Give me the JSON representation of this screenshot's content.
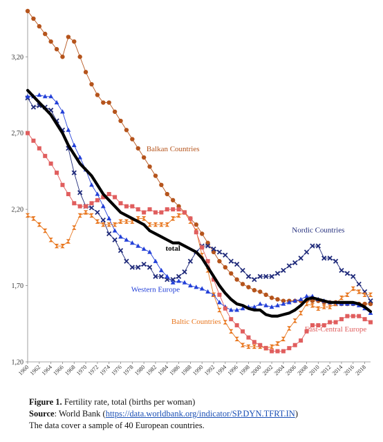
{
  "chart_data": {
    "type": "line",
    "title": "",
    "xlabel": "",
    "ylabel": "",
    "ylim": [
      1.2,
      3.5
    ],
    "yticks": [
      1.2,
      1.7,
      2.2,
      2.7,
      3.2
    ],
    "ytick_labels": [
      "1,20",
      "1,70",
      "2,20",
      "2,70",
      "3,20"
    ],
    "x_range": [
      1960,
      2019
    ],
    "xticks": [
      1960,
      1962,
      1964,
      1966,
      1968,
      1970,
      1972,
      1974,
      1976,
      1978,
      1980,
      1982,
      1984,
      1986,
      1988,
      1990,
      1992,
      1994,
      1996,
      1998,
      2000,
      2002,
      2004,
      2006,
      2008,
      2010,
      2012,
      2014,
      2016,
      2018
    ],
    "grid": false,
    "legend": "none (series labelled directly on chart)",
    "x": [
      1960,
      1961,
      1962,
      1963,
      1964,
      1965,
      1966,
      1967,
      1968,
      1969,
      1970,
      1971,
      1972,
      1973,
      1974,
      1975,
      1976,
      1977,
      1978,
      1979,
      1980,
      1981,
      1982,
      1983,
      1984,
      1985,
      1986,
      1987,
      1988,
      1989,
      1990,
      1991,
      1992,
      1993,
      1994,
      1995,
      1996,
      1997,
      1998,
      1999,
      2000,
      2001,
      2002,
      2003,
      2004,
      2005,
      2006,
      2007,
      2008,
      2009,
      2010,
      2011,
      2012,
      2013,
      2014,
      2015,
      2016,
      2017,
      2018,
      2019
    ],
    "series": [
      {
        "name": "Balkan Countries",
        "color": "#b5541c",
        "marker": "circle",
        "values": [
          3.5,
          3.45,
          3.4,
          3.35,
          3.3,
          3.25,
          3.2,
          3.33,
          3.3,
          3.2,
          3.1,
          3.02,
          2.95,
          2.9,
          2.9,
          2.84,
          2.78,
          2.72,
          2.66,
          2.6,
          2.54,
          2.48,
          2.42,
          2.36,
          2.3,
          2.26,
          2.22,
          2.18,
          2.14,
          2.1,
          2.04,
          1.98,
          1.92,
          1.86,
          1.82,
          1.78,
          1.74,
          1.71,
          1.69,
          1.67,
          1.66,
          1.64,
          1.62,
          1.61,
          1.6,
          1.6,
          1.6,
          1.6,
          1.6,
          1.6,
          1.6,
          1.59,
          1.59,
          1.59,
          1.58,
          1.58,
          1.58,
          1.58,
          1.58,
          1.58
        ]
      },
      {
        "name": "Nordic Countries",
        "color": "#1f2a7a",
        "marker": "x",
        "values": [
          2.93,
          2.87,
          2.88,
          2.87,
          2.85,
          2.78,
          2.72,
          2.6,
          2.44,
          2.31,
          2.22,
          2.21,
          2.18,
          2.13,
          2.04,
          2.0,
          1.93,
          1.86,
          1.82,
          1.82,
          1.84,
          1.82,
          1.76,
          1.76,
          1.74,
          1.74,
          1.76,
          1.79,
          1.86,
          1.92,
          1.96,
          1.96,
          1.94,
          1.92,
          1.9,
          1.86,
          1.84,
          1.8,
          1.76,
          1.74,
          1.76,
          1.76,
          1.76,
          1.78,
          1.8,
          1.83,
          1.85,
          1.88,
          1.92,
          1.96,
          1.96,
          1.88,
          1.88,
          1.86,
          1.8,
          1.78,
          1.76,
          1.71,
          1.66,
          1.6
        ]
      },
      {
        "name": "Western Europe",
        "color": "#2340d8",
        "marker": "triangle",
        "values": [
          2.94,
          2.94,
          2.95,
          2.94,
          2.94,
          2.9,
          2.84,
          2.72,
          2.62,
          2.54,
          2.46,
          2.36,
          2.3,
          2.22,
          2.14,
          2.06,
          2.02,
          2.0,
          1.98,
          1.96,
          1.94,
          1.92,
          1.86,
          1.8,
          1.76,
          1.72,
          1.73,
          1.72,
          1.7,
          1.69,
          1.68,
          1.66,
          1.64,
          1.59,
          1.56,
          1.54,
          1.54,
          1.55,
          1.56,
          1.56,
          1.58,
          1.57,
          1.56,
          1.57,
          1.58,
          1.59,
          1.6,
          1.61,
          1.63,
          1.63,
          1.61,
          1.6,
          1.59,
          1.58,
          1.58,
          1.58,
          1.58,
          1.57,
          1.55,
          1.52
        ]
      },
      {
        "name": "Baltic Countries",
        "color": "#e8761e",
        "marker": "hourglass",
        "values": [
          2.16,
          2.14,
          2.1,
          2.06,
          2.0,
          1.96,
          1.96,
          1.99,
          2.08,
          2.16,
          2.18,
          2.16,
          2.12,
          2.1,
          2.1,
          2.1,
          2.12,
          2.12,
          2.12,
          2.14,
          2.14,
          2.1,
          2.1,
          2.1,
          2.1,
          2.14,
          2.16,
          2.18,
          2.12,
          2.06,
          1.9,
          1.8,
          1.64,
          1.54,
          1.46,
          1.4,
          1.35,
          1.31,
          1.3,
          1.3,
          1.3,
          1.29,
          1.3,
          1.32,
          1.35,
          1.42,
          1.47,
          1.52,
          1.58,
          1.57,
          1.55,
          1.56,
          1.56,
          1.58,
          1.62,
          1.64,
          1.68,
          1.66,
          1.64,
          1.64
        ]
      },
      {
        "name": "East-Central Europe",
        "color": "#e05e5e",
        "marker": "square",
        "values": [
          2.7,
          2.65,
          2.6,
          2.55,
          2.5,
          2.44,
          2.36,
          2.3,
          2.24,
          2.22,
          2.22,
          2.24,
          2.26,
          2.28,
          2.3,
          2.28,
          2.24,
          2.22,
          2.22,
          2.2,
          2.18,
          2.2,
          2.18,
          2.18,
          2.2,
          2.2,
          2.2,
          2.18,
          2.14,
          2.05,
          1.95,
          1.86,
          1.74,
          1.64,
          1.55,
          1.48,
          1.44,
          1.4,
          1.36,
          1.33,
          1.31,
          1.29,
          1.27,
          1.27,
          1.27,
          1.29,
          1.31,
          1.34,
          1.4,
          1.44,
          1.44,
          1.44,
          1.46,
          1.46,
          1.48,
          1.5,
          1.5,
          1.5,
          1.48,
          1.46
        ]
      },
      {
        "name": "total",
        "color": "#000000",
        "marker": "none",
        "values": [
          2.98,
          2.94,
          2.9,
          2.86,
          2.82,
          2.76,
          2.7,
          2.62,
          2.56,
          2.5,
          2.46,
          2.42,
          2.36,
          2.3,
          2.26,
          2.22,
          2.18,
          2.16,
          2.14,
          2.12,
          2.1,
          2.06,
          2.04,
          2.02,
          2.0,
          1.98,
          1.98,
          1.96,
          1.94,
          1.92,
          1.88,
          1.82,
          1.76,
          1.7,
          1.65,
          1.61,
          1.58,
          1.57,
          1.55,
          1.54,
          1.54,
          1.51,
          1.5,
          1.5,
          1.51,
          1.52,
          1.54,
          1.57,
          1.61,
          1.62,
          1.61,
          1.6,
          1.59,
          1.59,
          1.59,
          1.59,
          1.59,
          1.58,
          1.56,
          1.53
        ]
      }
    ],
    "annotations": [
      {
        "text": "Balkan Countries",
        "color": "#b5541c",
        "x": 1985,
        "y": 2.58
      },
      {
        "text": "Nordic Countries",
        "color": "#1f2a7a",
        "x": 2010,
        "y": 2.05
      },
      {
        "text": "total",
        "color": "#000000",
        "x": 1985,
        "y": 1.93
      },
      {
        "text": "Western Europe",
        "color": "#2340d8",
        "x": 1982,
        "y": 1.66
      },
      {
        "text": "Baltic Countries",
        "color": "#e8761e",
        "x": 1989,
        "y": 1.45
      },
      {
        "text": "East-Central Europe",
        "color": "#e05e5e",
        "x": 2013,
        "y": 1.4
      }
    ]
  },
  "caption": {
    "figure_label": "Figure 1.",
    "figure_text": " Fertility rate, total (births per woman)",
    "source_label": "Source",
    "source_prefix": ": World Bank (",
    "source_link": "https://data.worldbank.org/indicator/SP.DYN.TFRT.IN",
    "source_suffix": ")",
    "note": "The data cover a sample of 40 European countries."
  }
}
